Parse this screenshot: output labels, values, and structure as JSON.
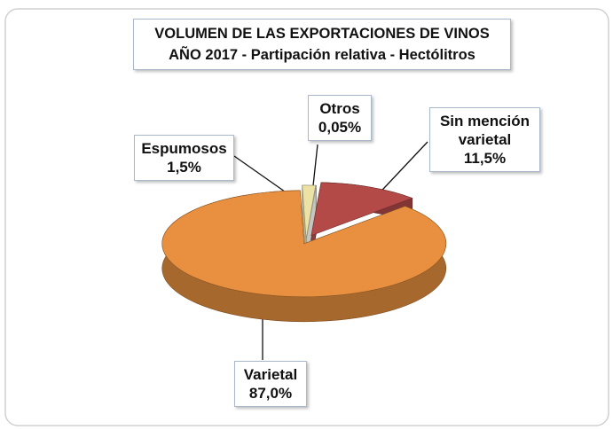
{
  "chart_data": {
    "type": "pie",
    "title": "VOLUMEN DE LAS EXPORTACIONES DE VINOS",
    "subtitle": "AÑO 2017 - Partipación relativa - Hectólitros",
    "categories": [
      "Sin mención varietal",
      "Varietal",
      "Espumosos",
      "Otros"
    ],
    "values": [
      11.5,
      87.0,
      1.5,
      0.05
    ],
    "value_labels": [
      "11,5%",
      "87,0%",
      "1,5%",
      "0,05%"
    ],
    "colors": [
      "#b34a48",
      "#e8903f",
      "#ece2a6",
      "#f7f6ef"
    ]
  }
}
